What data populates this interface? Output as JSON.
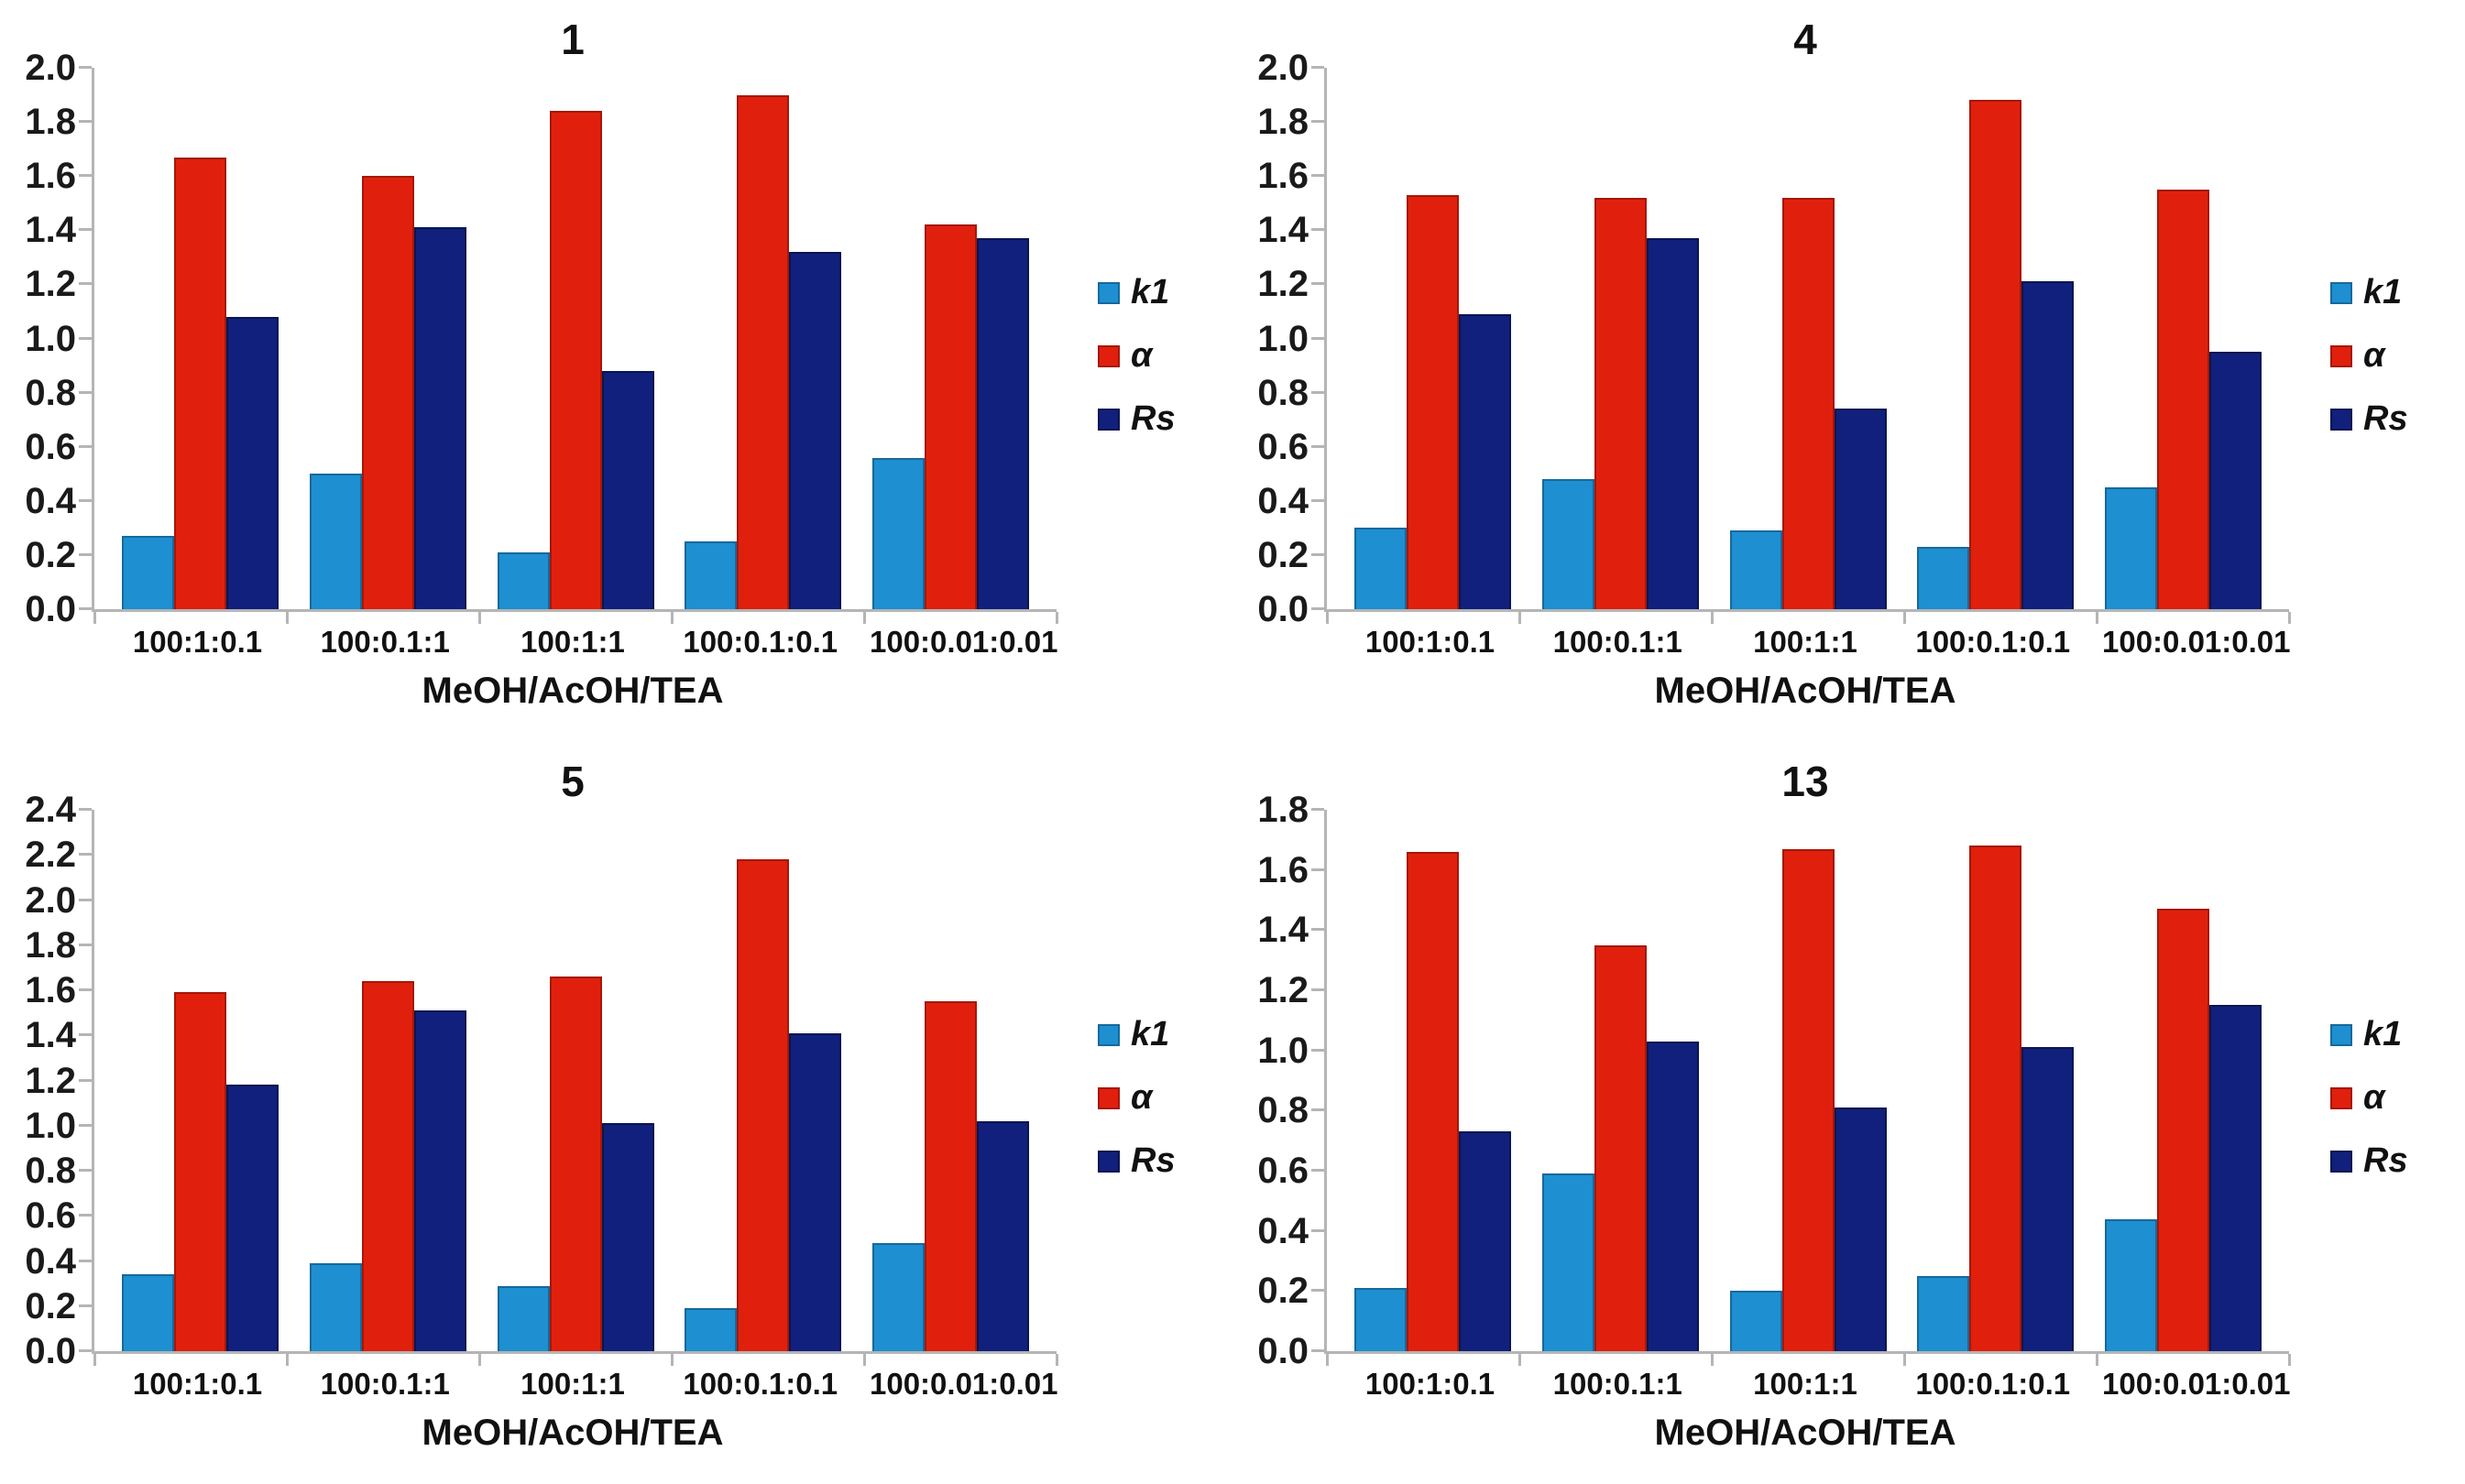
{
  "page": {
    "background": "#ffffff"
  },
  "colors": {
    "axis_line": "#b5b5b5",
    "tick_text": "#1a1a1a",
    "label_text": "#111111",
    "series": [
      {
        "key": "k1",
        "fill": "#1e8fd0",
        "edge": "#16699c"
      },
      {
        "key": "alpha",
        "fill": "#e0200c",
        "edge": "#a51708"
      },
      {
        "key": "rs",
        "fill": "#10207c",
        "edge": "#0a1550"
      }
    ]
  },
  "legend": {
    "items": [
      {
        "label": "k1"
      },
      {
        "label": "α"
      },
      {
        "label": "Rs"
      }
    ]
  },
  "chart_data": [
    {
      "type": "bar",
      "title": "1",
      "xlabel": "MeOH/AcOH/TEA",
      "ylim": [
        0,
        2.0
      ],
      "ytick_step": 0.2,
      "grid": false,
      "legend_position": "right",
      "categories": [
        "100:1:0.1",
        "100:0.1:1",
        "100:1:1",
        "100:0.1:0.1",
        "100:0.01:0.01"
      ],
      "series": [
        {
          "name": "k1",
          "values": [
            0.27,
            0.5,
            0.21,
            0.25,
            0.56
          ]
        },
        {
          "name": "α",
          "values": [
            1.67,
            1.6,
            1.84,
            1.9,
            1.42
          ]
        },
        {
          "name": "Rs",
          "values": [
            1.08,
            1.41,
            0.88,
            1.32,
            1.37
          ]
        }
      ]
    },
    {
      "type": "bar",
      "title": "4",
      "xlabel": "MeOH/AcOH/TEA",
      "ylim": [
        0,
        2.0
      ],
      "ytick_step": 0.2,
      "grid": false,
      "legend_position": "right",
      "categories": [
        "100:1:0.1",
        "100:0.1:1",
        "100:1:1",
        "100:0.1:0.1",
        "100:0.01:0.01"
      ],
      "series": [
        {
          "name": "k1",
          "values": [
            0.3,
            0.48,
            0.29,
            0.23,
            0.45
          ]
        },
        {
          "name": "α",
          "values": [
            1.53,
            1.52,
            1.52,
            1.88,
            1.55
          ]
        },
        {
          "name": "Rs",
          "values": [
            1.09,
            1.37,
            0.74,
            1.21,
            0.95
          ]
        }
      ]
    },
    {
      "type": "bar",
      "title": "5",
      "xlabel": "MeOH/AcOH/TEA",
      "ylim": [
        0,
        2.4
      ],
      "ytick_step": 0.2,
      "grid": false,
      "legend_position": "right",
      "categories": [
        "100:1:0.1",
        "100:0.1:1",
        "100:1:1",
        "100:0.1:0.1",
        "100:0.01:0.01"
      ],
      "series": [
        {
          "name": "k1",
          "values": [
            0.34,
            0.39,
            0.29,
            0.19,
            0.48
          ]
        },
        {
          "name": "α",
          "values": [
            1.59,
            1.64,
            1.66,
            2.18,
            1.55
          ]
        },
        {
          "name": "Rs",
          "values": [
            1.18,
            1.51,
            1.01,
            1.41,
            1.02
          ]
        }
      ]
    },
    {
      "type": "bar",
      "title": "13",
      "xlabel": "MeOH/AcOH/TEA",
      "ylim": [
        0,
        1.8
      ],
      "ytick_step": 0.2,
      "grid": false,
      "legend_position": "right",
      "categories": [
        "100:1:0.1",
        "100:0.1:1",
        "100:1:1",
        "100:0.1:0.1",
        "100:0.01:0.01"
      ],
      "series": [
        {
          "name": "k1",
          "values": [
            0.21,
            0.59,
            0.2,
            0.25,
            0.44
          ]
        },
        {
          "name": "α",
          "values": [
            1.66,
            1.35,
            1.67,
            1.68,
            1.47
          ]
        },
        {
          "name": "Rs",
          "values": [
            0.73,
            1.03,
            0.81,
            1.01,
            1.15
          ]
        }
      ]
    }
  ]
}
